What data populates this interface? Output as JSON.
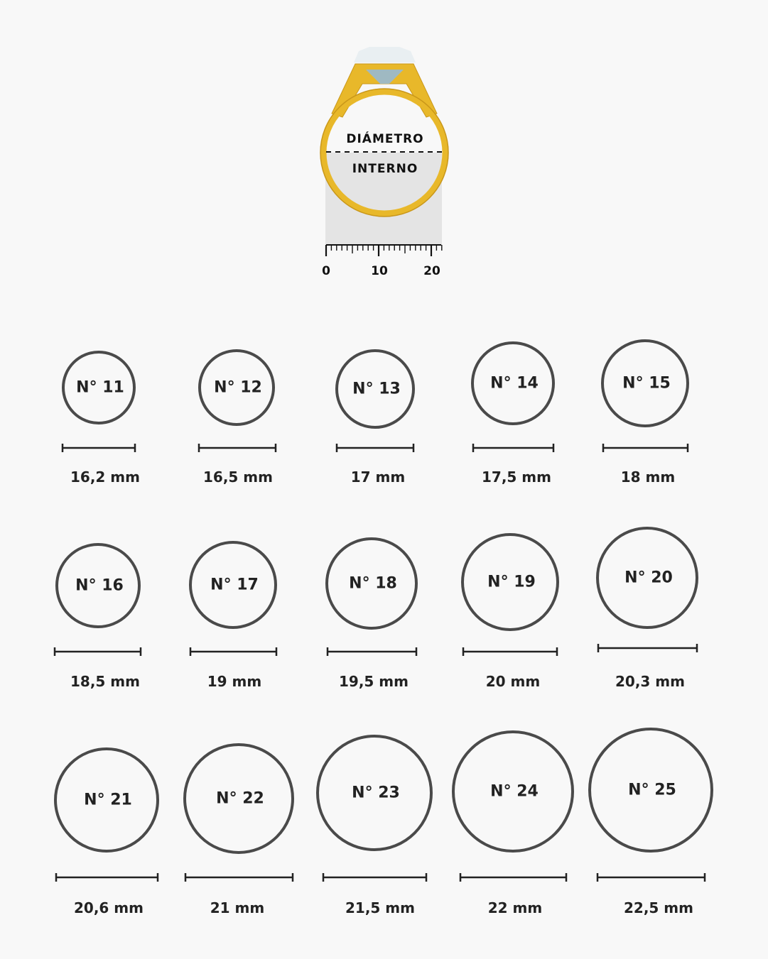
{
  "illustration": {
    "label_top": "DIÁMETRO",
    "label_bottom": "INTERNO",
    "ruler_ticks": [
      "0",
      "10",
      "20"
    ],
    "ring_color": "#e8b82a",
    "gem_color": "#b9d3dc"
  },
  "sizes": [
    {
      "label": "N° 11",
      "diameter": "16,2 mm"
    },
    {
      "label": "N° 12",
      "diameter": "16,5 mm"
    },
    {
      "label": "N° 13",
      "diameter": "17 mm"
    },
    {
      "label": "N° 14",
      "diameter": "17,5 mm"
    },
    {
      "label": "N° 15",
      "diameter": "18 mm"
    },
    {
      "label": "N° 16",
      "diameter": "18,5 mm"
    },
    {
      "label": "N° 17",
      "diameter": "19 mm"
    },
    {
      "label": "N° 18",
      "diameter": "19,5 mm"
    },
    {
      "label": "N° 19",
      "diameter": "20 mm"
    },
    {
      "label": "N° 20",
      "diameter": "20,3 mm"
    },
    {
      "label": "N° 21",
      "diameter": "20,6 mm"
    },
    {
      "label": "N° 22",
      "diameter": "21 mm"
    },
    {
      "label": "N° 23",
      "diameter": "21,5 mm"
    },
    {
      "label": "N° 24",
      "diameter": "22 mm"
    },
    {
      "label": "N° 25",
      "diameter": "22,5 mm"
    }
  ],
  "colors": {
    "circle": "#4a4a4a",
    "text": "#222222",
    "background": "#f8f8f8"
  }
}
